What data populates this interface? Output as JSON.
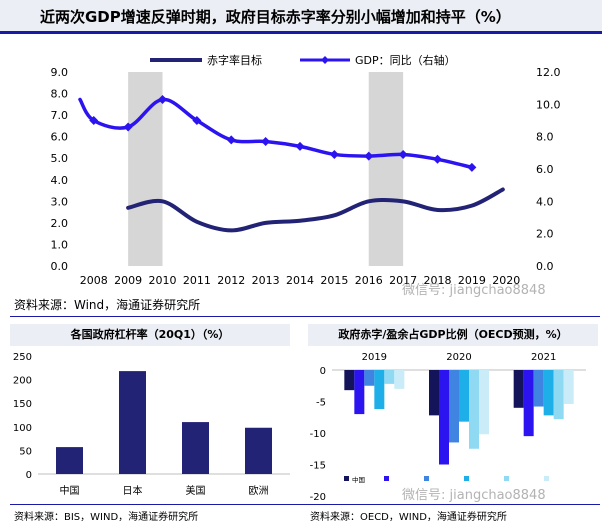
{
  "title": "近两次GDP增速反弹时期，政府目标赤字率分别小幅增加和持平（%）",
  "chart_data": [
    {
      "id": "main",
      "type": "line",
      "categories": [
        "2008",
        "2009",
        "2010",
        "2011",
        "2012",
        "2013",
        "2014",
        "2015",
        "2016",
        "2017",
        "2018",
        "2019",
        "2020"
      ],
      "shaded_periods": [
        [
          "2009",
          "2010"
        ],
        [
          "2016",
          "2017"
        ]
      ],
      "left_axis": {
        "min": 0,
        "max": 9,
        "ticks": [
          "0.0",
          "1.0",
          "2.0",
          "3.0",
          "4.0",
          "5.0",
          "6.0",
          "7.0",
          "8.0",
          "9.0"
        ]
      },
      "right_axis": {
        "min": 0,
        "max": 12,
        "ticks": [
          "0.0",
          "2.0",
          "4.0",
          "6.0",
          "8.0",
          "10.0",
          "12.0"
        ]
      },
      "series": [
        {
          "name": "赤字率目标",
          "axis": "left",
          "color": "#232376",
          "marker": false,
          "x": [
            2009.0,
            2010.0,
            2011.0,
            2012.0,
            2013.0,
            2014.0,
            2015.0,
            2016.0,
            2017.0,
            2018.0,
            2019.0,
            2019.9
          ],
          "values": [
            2.7,
            3.0,
            2.05,
            1.65,
            2.0,
            2.1,
            2.35,
            3.0,
            3.0,
            2.6,
            2.8,
            3.55
          ]
        },
        {
          "name": "GDP：同比（右轴）",
          "axis": "right",
          "color": "#2b14f0",
          "marker": true,
          "x": [
            2007.6,
            2008.0,
            2009.0,
            2010.0,
            2011.0,
            2012.0,
            2013.0,
            2014.0,
            2015.0,
            2016.0,
            2017.0,
            2018.0,
            2019.0
          ],
          "values": [
            10.3,
            9.0,
            8.6,
            10.3,
            9.0,
            7.8,
            7.7,
            7.4,
            6.9,
            6.8,
            6.9,
            6.6,
            6.1
          ],
          "marker_index_start": 1
        }
      ]
    },
    {
      "id": "leverage",
      "type": "bar",
      "title": "各国政府杠杆率（20Q1）（%）",
      "categories": [
        "中国",
        "日本",
        "美国",
        "欧洲"
      ],
      "values": [
        57,
        218,
        110,
        98
      ],
      "color": "#232376",
      "ylim": [
        0,
        250
      ],
      "yticks": [
        0,
        50,
        100,
        150,
        200,
        250
      ]
    },
    {
      "id": "oecd",
      "type": "bar",
      "title": "政府赤字/盈余占GDP比例（OECD预测，%）",
      "categories": [
        "2019",
        "2020",
        "2021"
      ],
      "ylim": [
        -20,
        0
      ],
      "yticks": [
        0,
        -5,
        -10,
        -15,
        -20
      ],
      "series": [
        {
          "color": "#14145a",
          "values": [
            -3.2,
            -7.2,
            -6.0
          ]
        },
        {
          "color": "#2b14f0",
          "values": [
            -7.0,
            -15.0,
            -10.5
          ]
        },
        {
          "color": "#3f84e0",
          "values": [
            -2.5,
            -11.5,
            -5.8
          ]
        },
        {
          "color": "#1eaee8",
          "values": [
            -6.2,
            -8.2,
            -7.2
          ]
        },
        {
          "color": "#8fd9f2",
          "values": [
            -2.2,
            -12.5,
            -7.8
          ]
        },
        {
          "color": "#c9ecf8",
          "values": [
            -3.0,
            -10.2,
            -5.4
          ]
        }
      ],
      "legend": [
        "中国",
        "",
        "",
        "",
        "",
        ""
      ]
    }
  ],
  "sources": {
    "main": "资料来源：Wind，海通证券研究所",
    "left": "资料来源：BIS，WIND，海通证券研究所",
    "right": "资料来源：OECD，WIND，海通证券研究所"
  },
  "watermark": "微信号: jiangchao8848"
}
